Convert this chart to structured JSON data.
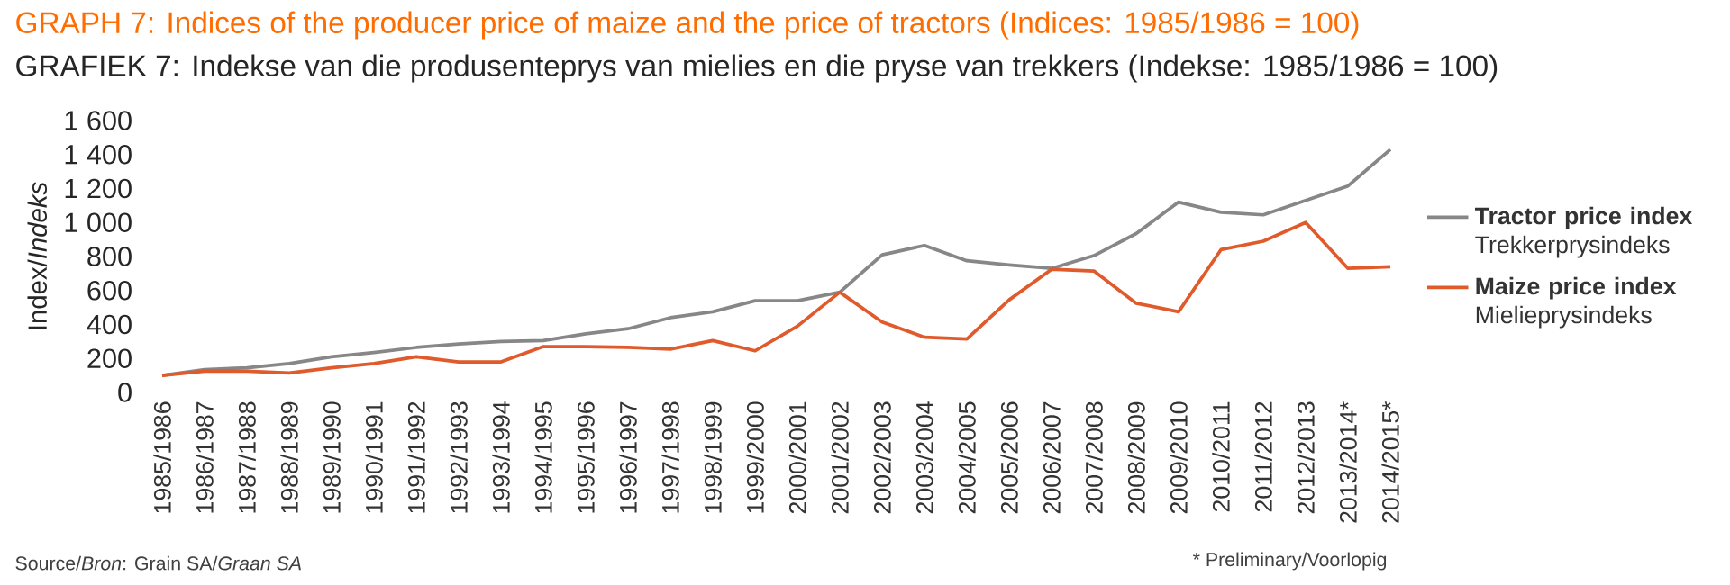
{
  "chart_data": {
    "type": "line",
    "title": "GRAPH 7: Indices of the producer price of maize and the price of tractors (Indices: 1985/1986 = 100)",
    "subtitle": "GRAFIEK 7: Indekse van die produsenteprys van mielies en die pryse van trekkers (Indekse: 1985/1986 = 100)",
    "ylabel": "Index/*Indeks*",
    "categories": [
      "1985/1986",
      "1986/1987",
      "1987/1988",
      "1988/1989",
      "1989/1990",
      "1990/1991",
      "1991/1992",
      "1992/1993",
      "1993/1994",
      "1994/1995",
      "1995/1996",
      "1996/1997",
      "1997/1998",
      "1998/1999",
      "1999/2000",
      "2000/2001",
      "2001/2002",
      "2002/2003",
      "2003/2004",
      "2004/2005",
      "2005/2006",
      "2006/2007",
      "2007/2008",
      "2008/2009",
      "2009/2010",
      "2010/2011",
      "2011/2012",
      "2012/2013",
      "2013/2014*",
      "2014/2015*"
    ],
    "series": [
      {
        "name": "**Tractor price index** Trekkerprysindeks",
        "color": "#878787",
        "values": [
          100,
          135,
          145,
          170,
          210,
          235,
          265,
          285,
          300,
          305,
          345,
          375,
          440,
          475,
          540,
          540,
          590,
          810,
          865,
          775,
          750,
          730,
          805,
          935,
          1120,
          1060,
          1045,
          1130,
          1215,
          1430
        ]
      },
      {
        "name": "**Maize price index** Mielieprysindeks",
        "color": "#e05a2b",
        "values": [
          100,
          125,
          125,
          115,
          145,
          170,
          210,
          180,
          180,
          270,
          270,
          265,
          255,
          305,
          245,
          390,
          590,
          415,
          325,
          315,
          545,
          725,
          715,
          525,
          475,
          840,
          890,
          1000,
          730,
          740
        ]
      }
    ],
    "ylim": [
      0,
      1600
    ],
    "yticks": [
      0,
      200,
      400,
      600,
      800,
      {
        "value": 1000,
        "label": "1 000"
      },
      {
        "value": 1200,
        "label": "1 200"
      },
      {
        "value": 1400,
        "label": "1 400"
      },
      {
        "value": 1600,
        "label": "1 600"
      }
    ],
    "legend": "right",
    "annotations": [
      "Source/*Bron*: Grain SA/*Graan SA*",
      "* Preliminary/Voorlopig"
    ]
  }
}
